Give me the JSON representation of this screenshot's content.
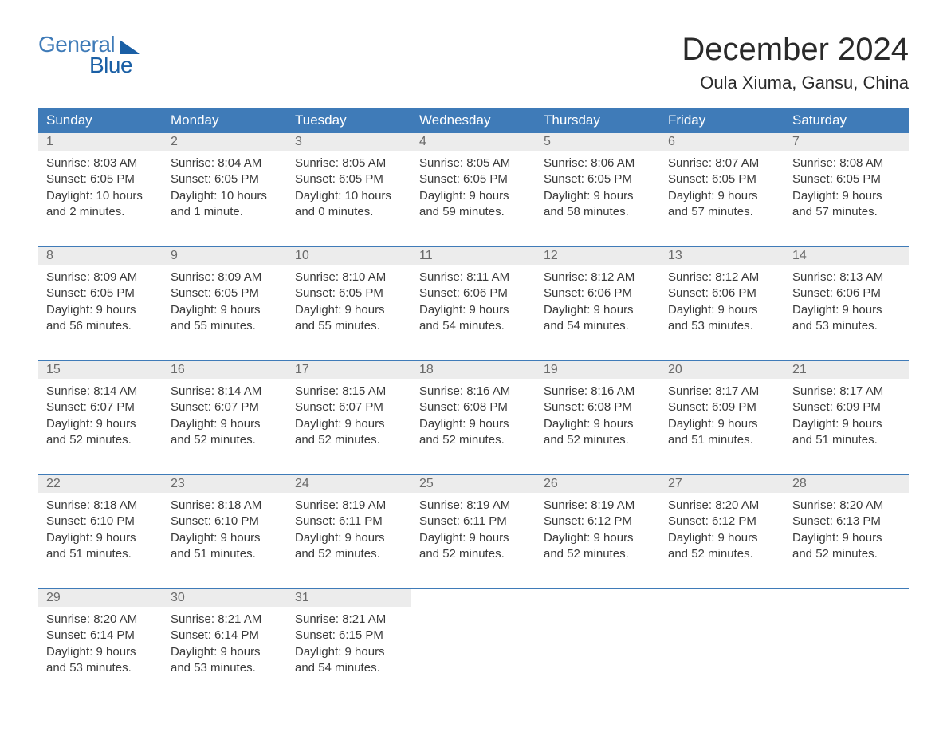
{
  "branding": {
    "logo_part1": "General",
    "logo_part2": "Blue",
    "logo_color_primary": "#3f7bb8",
    "logo_color_secondary": "#1a5fa5"
  },
  "page": {
    "month_title": "December 2024",
    "location": "Oula Xiuma, Gansu, China"
  },
  "colors": {
    "header_bg": "#3f7bb8",
    "header_text": "#ffffff",
    "daynum_bg": "#ececec",
    "daynum_text": "#6a6a6a",
    "body_text": "#3a3a3a",
    "week_divider": "#3f7bb8",
    "background": "#ffffff"
  },
  "typography": {
    "month_title_fontsize": 40,
    "location_fontsize": 22,
    "header_fontsize": 17,
    "daynum_fontsize": 16,
    "body_fontsize": 15
  },
  "weekday_labels": [
    "Sunday",
    "Monday",
    "Tuesday",
    "Wednesday",
    "Thursday",
    "Friday",
    "Saturday"
  ],
  "weeks": [
    [
      {
        "day": "1",
        "sunrise": "8:03 AM",
        "sunset": "6:05 PM",
        "daylight": "10 hours and 2 minutes."
      },
      {
        "day": "2",
        "sunrise": "8:04 AM",
        "sunset": "6:05 PM",
        "daylight": "10 hours and 1 minute."
      },
      {
        "day": "3",
        "sunrise": "8:05 AM",
        "sunset": "6:05 PM",
        "daylight": "10 hours and 0 minutes."
      },
      {
        "day": "4",
        "sunrise": "8:05 AM",
        "sunset": "6:05 PM",
        "daylight": "9 hours and 59 minutes."
      },
      {
        "day": "5",
        "sunrise": "8:06 AM",
        "sunset": "6:05 PM",
        "daylight": "9 hours and 58 minutes."
      },
      {
        "day": "6",
        "sunrise": "8:07 AM",
        "sunset": "6:05 PM",
        "daylight": "9 hours and 57 minutes."
      },
      {
        "day": "7",
        "sunrise": "8:08 AM",
        "sunset": "6:05 PM",
        "daylight": "9 hours and 57 minutes."
      }
    ],
    [
      {
        "day": "8",
        "sunrise": "8:09 AM",
        "sunset": "6:05 PM",
        "daylight": "9 hours and 56 minutes."
      },
      {
        "day": "9",
        "sunrise": "8:09 AM",
        "sunset": "6:05 PM",
        "daylight": "9 hours and 55 minutes."
      },
      {
        "day": "10",
        "sunrise": "8:10 AM",
        "sunset": "6:05 PM",
        "daylight": "9 hours and 55 minutes."
      },
      {
        "day": "11",
        "sunrise": "8:11 AM",
        "sunset": "6:06 PM",
        "daylight": "9 hours and 54 minutes."
      },
      {
        "day": "12",
        "sunrise": "8:12 AM",
        "sunset": "6:06 PM",
        "daylight": "9 hours and 54 minutes."
      },
      {
        "day": "13",
        "sunrise": "8:12 AM",
        "sunset": "6:06 PM",
        "daylight": "9 hours and 53 minutes."
      },
      {
        "day": "14",
        "sunrise": "8:13 AM",
        "sunset": "6:06 PM",
        "daylight": "9 hours and 53 minutes."
      }
    ],
    [
      {
        "day": "15",
        "sunrise": "8:14 AM",
        "sunset": "6:07 PM",
        "daylight": "9 hours and 52 minutes."
      },
      {
        "day": "16",
        "sunrise": "8:14 AM",
        "sunset": "6:07 PM",
        "daylight": "9 hours and 52 minutes."
      },
      {
        "day": "17",
        "sunrise": "8:15 AM",
        "sunset": "6:07 PM",
        "daylight": "9 hours and 52 minutes."
      },
      {
        "day": "18",
        "sunrise": "8:16 AM",
        "sunset": "6:08 PM",
        "daylight": "9 hours and 52 minutes."
      },
      {
        "day": "19",
        "sunrise": "8:16 AM",
        "sunset": "6:08 PM",
        "daylight": "9 hours and 52 minutes."
      },
      {
        "day": "20",
        "sunrise": "8:17 AM",
        "sunset": "6:09 PM",
        "daylight": "9 hours and 51 minutes."
      },
      {
        "day": "21",
        "sunrise": "8:17 AM",
        "sunset": "6:09 PM",
        "daylight": "9 hours and 51 minutes."
      }
    ],
    [
      {
        "day": "22",
        "sunrise": "8:18 AM",
        "sunset": "6:10 PM",
        "daylight": "9 hours and 51 minutes."
      },
      {
        "day": "23",
        "sunrise": "8:18 AM",
        "sunset": "6:10 PM",
        "daylight": "9 hours and 51 minutes."
      },
      {
        "day": "24",
        "sunrise": "8:19 AM",
        "sunset": "6:11 PM",
        "daylight": "9 hours and 52 minutes."
      },
      {
        "day": "25",
        "sunrise": "8:19 AM",
        "sunset": "6:11 PM",
        "daylight": "9 hours and 52 minutes."
      },
      {
        "day": "26",
        "sunrise": "8:19 AM",
        "sunset": "6:12 PM",
        "daylight": "9 hours and 52 minutes."
      },
      {
        "day": "27",
        "sunrise": "8:20 AM",
        "sunset": "6:12 PM",
        "daylight": "9 hours and 52 minutes."
      },
      {
        "day": "28",
        "sunrise": "8:20 AM",
        "sunset": "6:13 PM",
        "daylight": "9 hours and 52 minutes."
      }
    ],
    [
      {
        "day": "29",
        "sunrise": "8:20 AM",
        "sunset": "6:14 PM",
        "daylight": "9 hours and 53 minutes."
      },
      {
        "day": "30",
        "sunrise": "8:21 AM",
        "sunset": "6:14 PM",
        "daylight": "9 hours and 53 minutes."
      },
      {
        "day": "31",
        "sunrise": "8:21 AM",
        "sunset": "6:15 PM",
        "daylight": "9 hours and 54 minutes."
      },
      null,
      null,
      null,
      null
    ]
  ],
  "field_labels": {
    "sunrise_prefix": "Sunrise: ",
    "sunset_prefix": "Sunset: ",
    "daylight_prefix": "Daylight: "
  }
}
